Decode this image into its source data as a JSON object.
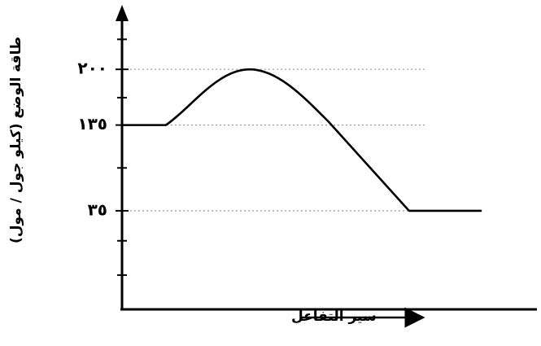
{
  "chart_data": {
    "type": "line",
    "title": "",
    "ylabel": "طاقة الوضع (كيلو جول / مول)",
    "xlabel": "سير التفاعل",
    "y_tick_labels": [
      "٣٥",
      "١٣٥",
      "٢٠٠"
    ],
    "y_ticks": [
      35,
      135,
      200
    ],
    "ylim": [
      -80,
      260
    ],
    "xlim": [
      0,
      100
    ],
    "grid": "horizontal dotted lines at labeled ticks",
    "series": [
      {
        "values": [
          {
            "x": 0,
            "y": 135
          },
          {
            "x": 11,
            "y": 135
          },
          {
            "x": 32,
            "y": 200
          },
          {
            "x": 52,
            "y": 138
          },
          {
            "x": 72,
            "y": 35
          },
          {
            "x": 90,
            "y": 35
          }
        ]
      }
    ]
  }
}
